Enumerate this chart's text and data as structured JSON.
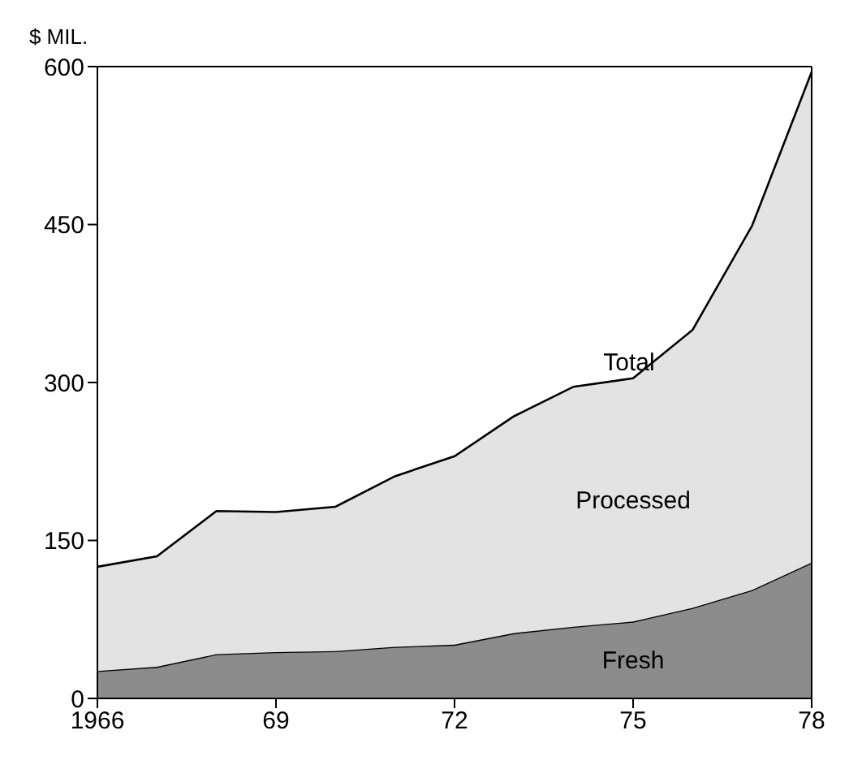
{
  "chart_data": {
    "type": "area",
    "stacked": true,
    "ylabel": "$ MIL.",
    "x": [
      1966,
      1967,
      1968,
      1969,
      1970,
      1971,
      1972,
      1973,
      1974,
      1975,
      1976,
      1977,
      1978
    ],
    "series": [
      {
        "name": "Fresh",
        "color": "#8c8c8c",
        "values": [
          26,
          30,
          42,
          44,
          45,
          49,
          51,
          62,
          68,
          73,
          86,
          103,
          129
        ]
      },
      {
        "name": "Processed",
        "color": "#e3e3e3",
        "values": [
          99,
          105,
          136,
          133,
          137,
          162,
          179,
          206,
          228,
          231,
          264,
          346,
          466
        ]
      }
    ],
    "annotations": [
      {
        "text": "Total",
        "x": 1975.5,
        "y": 320
      }
    ],
    "xlim": [
      1966,
      1978
    ],
    "xticks": [
      1966,
      {
        "value": 1969,
        "label": "69"
      },
      {
        "value": 1972,
        "label": "72"
      },
      {
        "value": 1975,
        "label": "75"
      },
      {
        "value": 1978,
        "label": "78"
      }
    ],
    "ylim": [
      0,
      600
    ],
    "yticks": [
      0,
      150,
      300,
      450,
      600
    ],
    "grid": false,
    "legend": false
  }
}
